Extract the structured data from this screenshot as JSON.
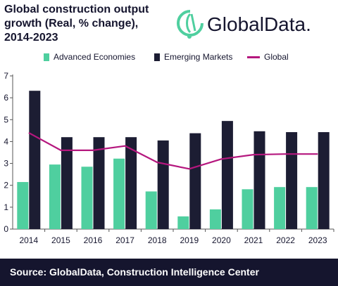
{
  "header": {
    "title_lines": [
      "Global construction output",
      "growth (Real, % change),",
      "2014-2023"
    ],
    "brand": "GlobalData."
  },
  "colors": {
    "advanced": "#4fcf9f",
    "emerging": "#1c1d33",
    "global": "#b5177e",
    "footer_bg": "#15152e",
    "text": "#15152e"
  },
  "chart_data": {
    "type": "bar",
    "categories": [
      "2014",
      "2015",
      "2016",
      "2017",
      "2018",
      "2019",
      "2020",
      "2021",
      "2022",
      "2023"
    ],
    "series": [
      {
        "name": "Advanced Economies",
        "type": "bar",
        "values": [
          2.15,
          2.95,
          2.85,
          3.22,
          1.72,
          0.58,
          0.9,
          1.82,
          1.92,
          1.92
        ]
      },
      {
        "name": "Emerging Markets",
        "type": "bar",
        "values": [
          6.32,
          4.2,
          4.2,
          4.2,
          4.05,
          4.38,
          4.94,
          4.47,
          4.43,
          4.43
        ]
      },
      {
        "name": "Global",
        "type": "line",
        "values": [
          4.4,
          3.6,
          3.6,
          3.8,
          3.05,
          2.75,
          3.2,
          3.4,
          3.43,
          3.43
        ]
      }
    ],
    "yticks": [
      "0",
      "1",
      "2",
      "3",
      "4",
      "5",
      "6",
      "7"
    ],
    "ylim": [
      0,
      7
    ],
    "grid": false,
    "legend_position": "top"
  },
  "footer": {
    "source": "Source:  GlobalData, Construction Intelligence Center"
  }
}
